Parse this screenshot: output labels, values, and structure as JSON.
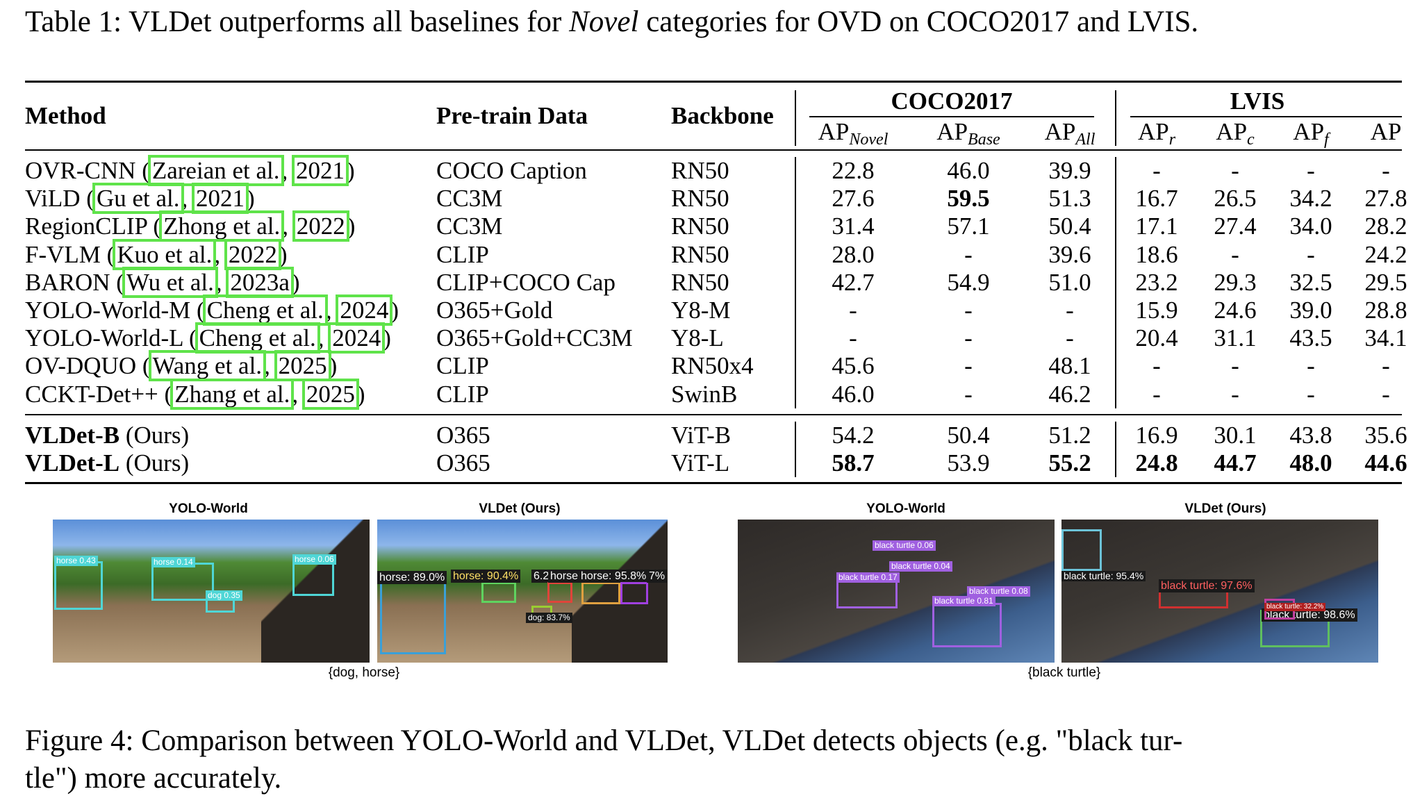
{
  "table_caption": "Table 1: VLDet outperforms all baselines for Novel categories for OVD on COCO2017 and LVIS.",
  "table": {
    "headers": {
      "method": "Method",
      "pretrain": "Pre-train Data",
      "backbone": "Backbone",
      "coco_group": "COCO2017",
      "lvis_group": "LVIS",
      "ap": "AP",
      "sub_novel": "Novel",
      "sub_base": "Base",
      "sub_all": "All",
      "sub_r": "r",
      "sub_c": "c",
      "sub_f": "f"
    },
    "rows": [
      {
        "name": "OVR-CNN (",
        "author": "Zareian et al.",
        "sep": ", ",
        "year": "2021",
        "close": ")",
        "data": "COCO Caption",
        "backbone": "RN50",
        "vals": [
          "22.8",
          "46.0",
          "39.9",
          "-",
          "-",
          "-",
          "-"
        ]
      },
      {
        "name": "ViLD (",
        "author": "Gu et al.",
        "sep": ", ",
        "year": "2021",
        "close": ")",
        "data": "CC3M",
        "backbone": "RN50",
        "vals": [
          "27.6",
          "59.5",
          "51.3",
          "16.7",
          "26.5",
          "34.2",
          "27.8"
        ]
      },
      {
        "name": "RegionCLIP (",
        "author": "Zhong et al.",
        "sep": ", ",
        "year": "2022",
        "close": ")",
        "data": "CC3M",
        "backbone": "RN50",
        "vals": [
          "31.4",
          "57.1",
          "50.4",
          "17.1",
          "27.4",
          "34.0",
          "28.2"
        ]
      },
      {
        "name": "F-VLM (",
        "author": "Kuo et al.",
        "sep": ", ",
        "year": "2022",
        "close": ")",
        "data": "CLIP",
        "backbone": "RN50",
        "vals": [
          "28.0",
          "-",
          "39.6",
          "18.6",
          "-",
          "-",
          "24.2"
        ]
      },
      {
        "name": "BARON (",
        "author": "Wu et al.",
        "sep": ", ",
        "year": "2023a",
        "close": ")",
        "data": "CLIP+COCO Cap",
        "backbone": "RN50",
        "vals": [
          "42.7",
          "54.9",
          "51.0",
          "23.2",
          "29.3",
          "32.5",
          "29.5"
        ]
      },
      {
        "name": "YOLO-World-M (",
        "author": "Cheng et al.",
        "sep": ", ",
        "year": "2024",
        "close": ")",
        "data": "O365+Gold",
        "backbone": "Y8-M",
        "vals": [
          "-",
          "-",
          "-",
          "15.9",
          "24.6",
          "39.0",
          "28.8"
        ]
      },
      {
        "name": "YOLO-World-L (",
        "author": "Cheng et al.",
        "sep": ", ",
        "year": "2024",
        "close": ")",
        "data": "O365+Gold+CC3M",
        "backbone": "Y8-L",
        "vals": [
          "-",
          "-",
          "-",
          "20.4",
          "31.1",
          "43.5",
          "34.1"
        ]
      },
      {
        "name": "OV-DQUO (",
        "author": "Wang et al.",
        "sep": ", ",
        "year": "2025",
        "close": ")",
        "data": "CLIP",
        "backbone": "RN50x4",
        "vals": [
          "45.6",
          "-",
          "48.1",
          "-",
          "-",
          "-",
          "-"
        ]
      },
      {
        "name": "CCKT-Det++ (",
        "author": "Zhang et al.",
        "sep": ", ",
        "year": "2025",
        "close": ")",
        "data": "CLIP",
        "backbone": "SwinB",
        "vals": [
          "46.0",
          "-",
          "46.2",
          "-",
          "-",
          "-",
          "-"
        ]
      }
    ],
    "ours": [
      {
        "name": "VLDet-B",
        "suffix": " (Ours)",
        "data": "O365",
        "backbone": "ViT-B",
        "vals": [
          "54.2",
          "50.4",
          "51.2",
          "16.9",
          "30.1",
          "43.8",
          "35.6"
        ]
      },
      {
        "name": "VLDet-L",
        "suffix": " (Ours)",
        "data": "O365",
        "backbone": "ViT-L",
        "vals": [
          "58.7",
          "53.9",
          "55.2",
          "24.8",
          "44.7",
          "48.0",
          "44.6"
        ]
      }
    ]
  },
  "figure": {
    "left": {
      "title_a": "YOLO-World",
      "title_b": "VLDet (Ours)",
      "prompt": "{dog, horse}",
      "yolo_labels": [
        "horse 0.43",
        "horse 0.14",
        "horse 0.06",
        "dog 0.35"
      ],
      "vldet_labels": [
        "horse: 89.0%",
        "horse: 90.4%",
        "6.2",
        "horse",
        "horse: 95.8%",
        "7%",
        "dog: 83.7%"
      ]
    },
    "right": {
      "title_a": "YOLO-World",
      "title_b": "VLDet (Ours)",
      "prompt": "{black turtle}",
      "yolo_labels": [
        "black turtle 0.06",
        "black turtle 0.04",
        "black turtle 0.17",
        "black turtle 0.08",
        "black turtle 0.81"
      ],
      "vldet_labels": [
        "black turtle: 95.4%",
        "black turtle: 97.6%",
        "black turtle: 98.6%",
        "black turtle: 32.2%"
      ]
    },
    "caption": "Figure 4: Comparison between YOLO-World and VLDet, VLDet detects objects (e.g. \"black tur-",
    "caption2": "tle\") more accurately."
  },
  "colors": {
    "cite_box": "#5fe34a"
  }
}
